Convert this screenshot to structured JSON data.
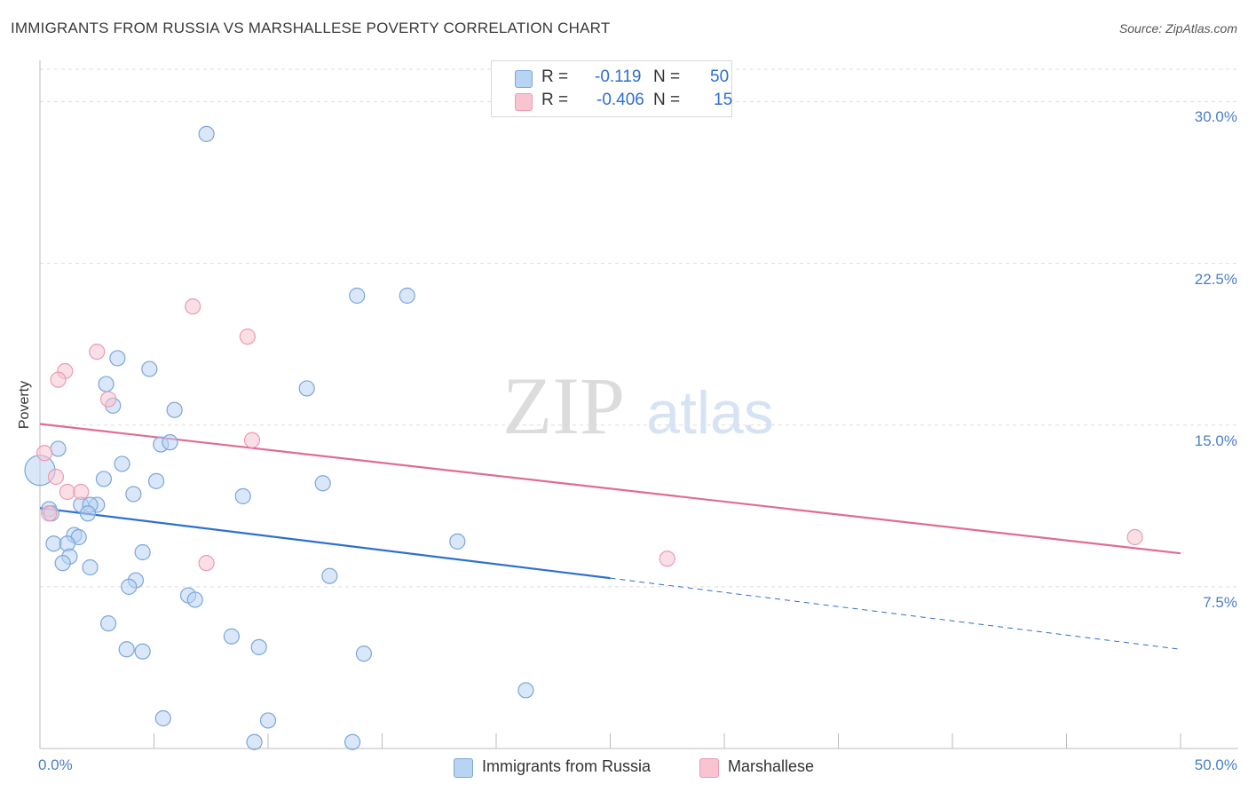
{
  "title": "IMMIGRANTS FROM RUSSIA VS MARSHALLESE POVERTY CORRELATION CHART",
  "source": "Source: ZipAtlas.com",
  "watermark": {
    "zip": "ZIP",
    "atlas": "atlas"
  },
  "colors": {
    "blue_fill": "#b9d3f3",
    "blue_stroke": "#7aa6dd",
    "blue_line": "#2e6fd0",
    "pink_fill": "#f8c4d2",
    "pink_stroke": "#ec9ab1",
    "pink_line": "#e06b94",
    "grid": "#dddddd",
    "tick_text": "#4a7fc9"
  },
  "legend_stats": [
    {
      "r_label": "R =",
      "r_value": "-0.119",
      "n_label": "N =",
      "n_value": "50",
      "series": "blue"
    },
    {
      "r_label": "R =",
      "r_value": "-0.406",
      "n_label": "N =",
      "n_value": "15",
      "series": "pink"
    }
  ],
  "bottom_legend": [
    {
      "label": "Immigrants from Russia",
      "series": "blue"
    },
    {
      "label": "Marshallese",
      "series": "pink"
    }
  ],
  "chart_data": {
    "type": "scatter",
    "title": "IMMIGRANTS FROM RUSSIA VS MARSHALLESE POVERTY CORRELATION CHART",
    "xlabel": "",
    "ylabel": "Poverty",
    "xlim": [
      0,
      50
    ],
    "ylim": [
      0,
      31.5
    ],
    "x_tick_labels": [
      {
        "value": 0,
        "label": "0.0%"
      },
      {
        "value": 50,
        "label": "50.0%"
      }
    ],
    "y_tick_labels": [
      {
        "value": 7.5,
        "label": "7.5%"
      },
      {
        "value": 15,
        "label": "15.0%"
      },
      {
        "value": 22.5,
        "label": "22.5%"
      },
      {
        "value": 30,
        "label": "30.0%"
      }
    ],
    "x_minor_ticks": [
      5,
      10,
      15,
      20,
      25,
      30,
      35,
      40,
      45
    ],
    "grid": true,
    "series": [
      {
        "name": "Immigrants from Russia",
        "color_key": "blue",
        "points": [
          [
            7.3,
            28.5
          ],
          [
            13.9,
            21.0
          ],
          [
            16.1,
            21.0
          ],
          [
            3.4,
            18.1
          ],
          [
            4.8,
            17.6
          ],
          [
            2.9,
            16.9
          ],
          [
            11.7,
            16.7
          ],
          [
            3.2,
            15.9
          ],
          [
            5.9,
            15.7
          ],
          [
            0.8,
            13.9
          ],
          [
            5.3,
            14.1
          ],
          [
            5.7,
            14.2
          ],
          [
            3.6,
            13.2
          ],
          [
            2.8,
            12.5
          ],
          [
            5.1,
            12.4
          ],
          [
            12.4,
            12.3
          ],
          [
            4.1,
            11.8
          ],
          [
            8.9,
            11.7
          ],
          [
            1.8,
            11.3
          ],
          [
            2.5,
            11.3
          ],
          [
            2.2,
            11.3
          ],
          [
            0.4,
            11.1
          ],
          [
            0.5,
            10.9
          ],
          [
            2.1,
            10.9
          ],
          [
            1.5,
            9.9
          ],
          [
            1.7,
            9.8
          ],
          [
            0.6,
            9.5
          ],
          [
            1.2,
            9.5
          ],
          [
            18.3,
            9.6
          ],
          [
            4.5,
            9.1
          ],
          [
            1.3,
            8.9
          ],
          [
            1.0,
            8.6
          ],
          [
            2.2,
            8.4
          ],
          [
            12.7,
            8.0
          ],
          [
            4.2,
            7.8
          ],
          [
            3.9,
            7.5
          ],
          [
            6.5,
            7.1
          ],
          [
            6.8,
            6.9
          ],
          [
            3.0,
            5.8
          ],
          [
            8.4,
            5.2
          ],
          [
            3.8,
            4.6
          ],
          [
            4.5,
            4.5
          ],
          [
            9.6,
            4.7
          ],
          [
            14.2,
            4.4
          ],
          [
            21.3,
            2.7
          ],
          [
            5.4,
            1.4
          ],
          [
            10.0,
            1.3
          ],
          [
            9.4,
            0.3
          ],
          [
            13.7,
            0.3
          ],
          [
            0.0,
            12.9
          ]
        ],
        "trend": {
          "x0": 0,
          "y0": 11.15,
          "x1": 25,
          "y1": 7.9,
          "dashed_to_x": 50,
          "dashed_to_y": 4.6
        }
      },
      {
        "name": "Marshallese",
        "color_key": "pink",
        "points": [
          [
            6.7,
            20.5
          ],
          [
            9.1,
            19.1
          ],
          [
            2.5,
            18.4
          ],
          [
            1.1,
            17.5
          ],
          [
            0.8,
            17.1
          ],
          [
            3.0,
            16.2
          ],
          [
            9.3,
            14.3
          ],
          [
            0.2,
            13.7
          ],
          [
            0.7,
            12.6
          ],
          [
            1.2,
            11.9
          ],
          [
            1.8,
            11.9
          ],
          [
            0.4,
            10.9
          ],
          [
            7.3,
            8.6
          ],
          [
            27.5,
            8.8
          ],
          [
            48.0,
            9.8
          ]
        ],
        "trend": {
          "x0": 0,
          "y0": 15.05,
          "x1": 50,
          "y1": 9.05
        }
      }
    ]
  }
}
